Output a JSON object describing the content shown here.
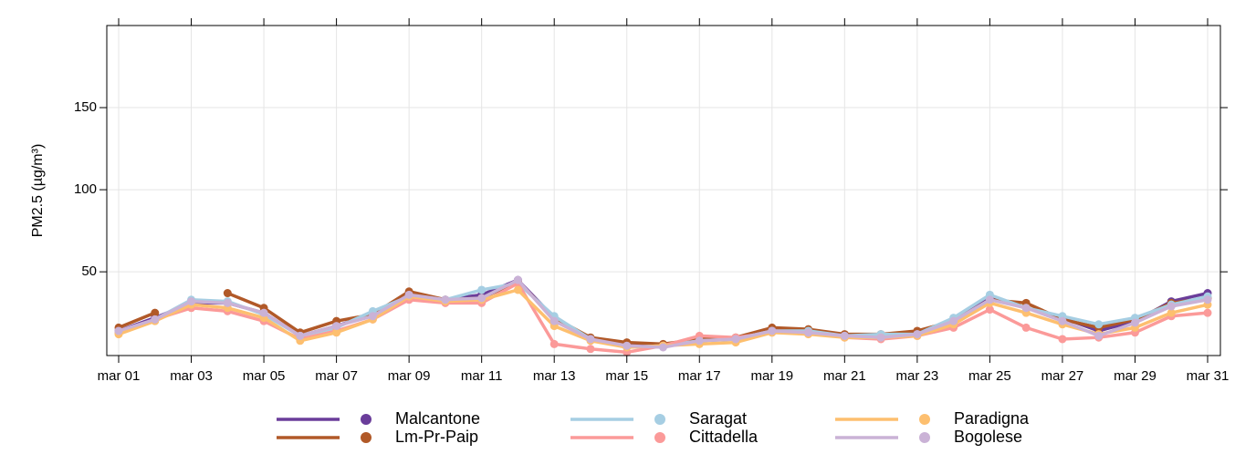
{
  "chart_data": {
    "type": "line",
    "y_label": "PM2.5 (µg/m³)",
    "categories": [
      "mar 01",
      null,
      "mar 03",
      null,
      "mar 05",
      null,
      "mar 07",
      null,
      "mar 09",
      null,
      "mar 11",
      null,
      "mar 13",
      null,
      "mar 15",
      null,
      "mar 17",
      null,
      "mar 19",
      null,
      "mar 21",
      null,
      "mar 23",
      null,
      "mar 25",
      null,
      "mar 27",
      null,
      "mar 29",
      null,
      "mar 31"
    ],
    "series": [
      {
        "name": "Malcantone",
        "color": "#6a3d9a",
        "values": [
          14,
          22,
          31,
          31,
          25,
          11,
          17,
          24,
          36,
          33,
          36,
          45,
          22,
          9,
          5,
          5,
          8,
          9,
          14,
          14,
          11,
          11,
          12,
          21,
          34,
          28,
          22,
          14,
          20,
          32,
          37
        ]
      },
      {
        "name": "Lm-Pr-Paip",
        "color": "#b15928",
        "values": [
          16,
          25,
          null,
          37,
          28,
          13,
          20,
          24,
          38,
          33,
          34,
          44,
          22,
          10,
          7,
          6,
          9,
          10,
          16,
          15,
          12,
          12,
          14,
          20,
          33,
          31,
          21,
          16,
          21,
          31,
          34
        ]
      },
      {
        "name": "Saragat",
        "color": "#a6cee3",
        "values": [
          13,
          21,
          33,
          32,
          24,
          11,
          16,
          26,
          35,
          33,
          39,
          43,
          23,
          9,
          4,
          5,
          8,
          9,
          14,
          14,
          11,
          12,
          12,
          22,
          36,
          28,
          23,
          18,
          22,
          30,
          35
        ]
      },
      {
        "name": "Cittadella",
        "color": "#fb9a99",
        "values": [
          13,
          21,
          28,
          26,
          20,
          9,
          14,
          21,
          33,
          31,
          31,
          43,
          6,
          3,
          1,
          5,
          11,
          10,
          13,
          13,
          10,
          9,
          11,
          16,
          27,
          16,
          9,
          10,
          13,
          23,
          25
        ]
      },
      {
        "name": "Paradigna",
        "color": "#fdbf6f",
        "values": [
          12,
          20,
          30,
          28,
          22,
          8,
          13,
          21,
          35,
          32,
          33,
          39,
          17,
          8,
          4,
          5,
          6,
          7,
          13,
          12,
          10,
          10,
          11,
          18,
          31,
          25,
          18,
          12,
          16,
          25,
          30
        ]
      },
      {
        "name": "Bogolese",
        "color": "#cab2d6",
        "values": [
          14,
          21,
          32,
          31,
          25,
          11,
          17,
          23,
          36,
          33,
          34,
          45,
          20,
          9,
          5,
          4,
          8,
          9,
          14,
          13,
          11,
          10,
          12,
          20,
          33,
          28,
          20,
          11,
          19,
          29,
          33
        ]
      }
    ],
    "ylim": [
      -1,
      200
    ],
    "yticks": [
      50,
      100,
      150
    ],
    "grid": true
  }
}
